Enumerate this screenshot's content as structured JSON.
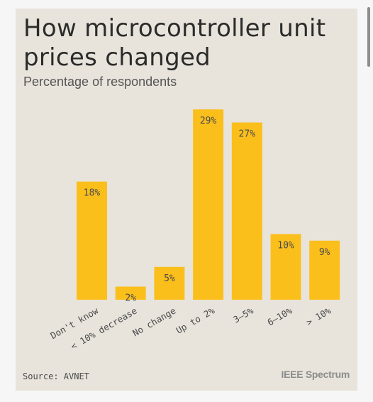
{
  "title": "How microcontroller unit prices changed",
  "subtitle": "Percentage of respondents",
  "source": "Source: AVNET",
  "logo_text": "IEEE Spectrum",
  "colors": {
    "bar": "#fbbf1c",
    "card_background": "#e8e4dc",
    "page_background": "#f6f6f6",
    "text": "#4a4a4a"
  },
  "chart_data": {
    "type": "bar",
    "title": "How microcontroller unit prices changed",
    "subtitle": "Percentage of respondents",
    "categories": [
      "Don't know",
      "< 10% decrease",
      "No change",
      "Up to 2%",
      "3–5%",
      "6–10%",
      "> 10%"
    ],
    "values": [
      18,
      2,
      5,
      29,
      27,
      10,
      9
    ],
    "value_labels": [
      "18%",
      "2%",
      "5%",
      "29%",
      "27%",
      "10%",
      "9%"
    ],
    "ylim": [
      0,
      29
    ],
    "grid": false,
    "xlabel": "",
    "ylabel": ""
  }
}
